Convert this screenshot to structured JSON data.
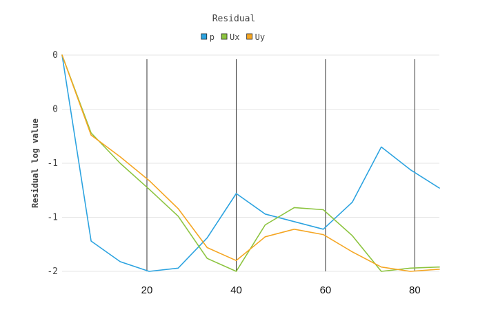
{
  "chart_data": {
    "type": "line",
    "title": "Residual",
    "xlabel": "",
    "ylabel": "Residual log value",
    "x": [
      1,
      7.5,
      14,
      20.5,
      27,
      33.5,
      40,
      46.5,
      53,
      59.5,
      66,
      72.5,
      79,
      85.5
    ],
    "xlim": [
      1,
      85.5
    ],
    "xticks": [
      20,
      40,
      60,
      80
    ],
    "xtick_labels": [
      "20",
      "40",
      "60",
      "80"
    ],
    "ylim": [
      -2.0,
      0.0
    ],
    "yticks": [
      0.0,
      -0.5,
      -1.0,
      -1.5,
      -2.0
    ],
    "ytick_labels": [
      "0",
      "0",
      "-1",
      "-1",
      "-2"
    ],
    "grid": true,
    "legend_position": "top-center",
    "series": [
      {
        "name": "p",
        "color": "#2ca3e0",
        "values": [
          0.0,
          -1.72,
          -1.91,
          -2.0,
          -1.97,
          -1.69,
          -1.28,
          -1.47,
          -1.54,
          -1.61,
          -1.36,
          -0.85,
          -1.06,
          -1.23
        ]
      },
      {
        "name": "Ux",
        "color": "#8cc43f",
        "values": [
          0.0,
          -0.72,
          -1.0,
          -1.24,
          -1.49,
          -1.88,
          -2.0,
          -1.57,
          -1.41,
          -1.43,
          -1.67,
          -2.0,
          -1.97,
          -1.96
        ]
      },
      {
        "name": "Uy",
        "color": "#f5a623",
        "values": [
          0.0,
          -0.74,
          -0.94,
          -1.16,
          -1.42,
          -1.78,
          -1.9,
          -1.68,
          -1.61,
          -1.66,
          -1.82,
          -1.96,
          -2.0,
          -1.98
        ]
      }
    ]
  }
}
